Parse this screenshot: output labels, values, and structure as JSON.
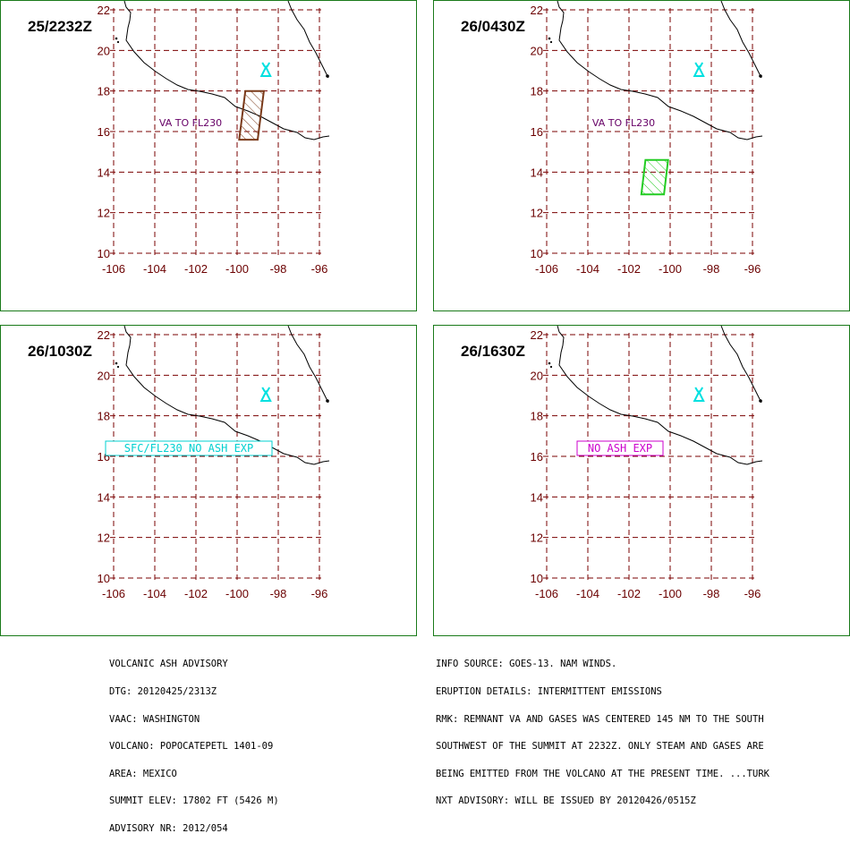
{
  "map": {
    "lon_range": [
      -106,
      -96
    ],
    "lat_range": [
      10,
      22
    ],
    "x_ticks": [
      "-106",
      "-104",
      "-102",
      "-100",
      "-98",
      "-96"
    ],
    "y_ticks": [
      "22",
      "20",
      "18",
      "16",
      "14",
      "12",
      "10"
    ],
    "volcano_icon": "volcano-triangle-icon",
    "volcano_location": {
      "lon": -98.6,
      "lat": 19.0
    },
    "colors": {
      "border": "#1a7a1a",
      "grid": "#7a0000",
      "coast": "#000000",
      "volcano": "#00e0e0"
    }
  },
  "panels": [
    {
      "time": "25/2232Z",
      "annotation": {
        "text": "VA TO FL230",
        "color": "#660066",
        "boxed": false
      },
      "ash_polygon": {
        "color": "#7a3a1a",
        "points": [
          [
            -99.6,
            18.0
          ],
          [
            -98.7,
            18.0
          ],
          [
            -99.0,
            15.6
          ],
          [
            -99.9,
            15.6
          ]
        ]
      }
    },
    {
      "time": "26/0430Z",
      "annotation": {
        "text": "VA TO FL230",
        "color": "#660066",
        "boxed": false
      },
      "ash_polygon": {
        "color": "#22cc22",
        "points": [
          [
            -101.2,
            14.6
          ],
          [
            -100.1,
            14.6
          ],
          [
            -100.3,
            12.9
          ],
          [
            -101.4,
            12.9
          ]
        ]
      }
    },
    {
      "time": "26/1030Z",
      "annotation": {
        "text": "SFC/FL230 NO ASH EXP",
        "color": "#00d0d0",
        "boxed": true
      },
      "ash_polygon": null
    },
    {
      "time": "26/1630Z",
      "annotation": {
        "text": "NO ASH EXP",
        "color": "#cc00cc",
        "boxed": true
      },
      "ash_polygon": null
    }
  ],
  "advisory_left": [
    "VOLCANIC ASH ADVISORY",
    "DTG: 20120425/2313Z",
    "VAAC: WASHINGTON",
    "VOLCANO: POPOCATEPETL 1401-09",
    "AREA: MEXICO",
    "SUMMIT ELEV: 17802 FT (5426 M)",
    "ADVISORY NR: 2012/054"
  ],
  "advisory_right": [
    "INFO SOURCE: GOES-13. NAM WINDS.",
    "ERUPTION DETAILS: INTERMITTENT EMISSIONS",
    "RMK: REMNANT VA AND GASES WAS CENTERED 145 NM TO THE SOUTH",
    "SOUTHWEST OF THE SUMMIT AT 2232Z. ONLY STEAM AND GASES ARE",
    "BEING EMITTED FROM THE VOLCANO AT THE PRESENT TIME. ...TURK",
    "NXT ADVISORY: WILL BE ISSUED BY 20120426/0515Z"
  ]
}
